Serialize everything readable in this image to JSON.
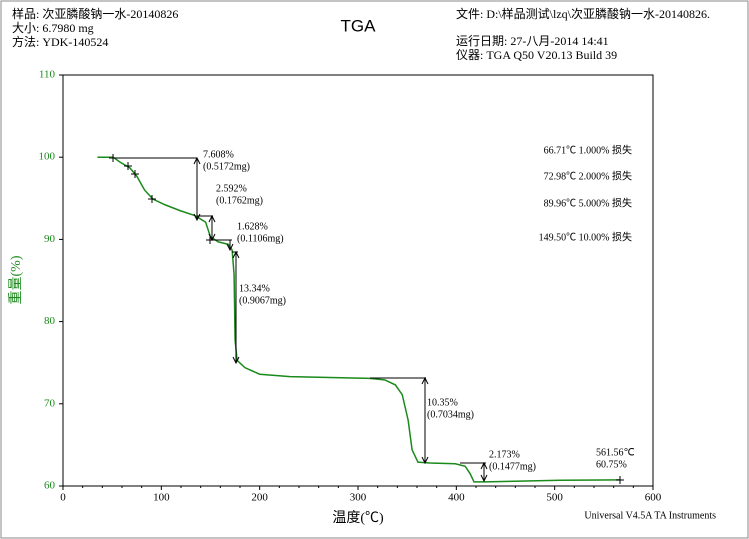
{
  "header": {
    "sample": "样品: 次亚膦酸钠一水-20140826",
    "size": "大小: 6.7980 mg",
    "method": "方法: YDK-140524",
    "file": "文件: D:\\样品测试\\lzq\\次亚膦酸钠一水-20140826.",
    "run_date": "运行日期: 27-八月-2014 14:41",
    "instrument": "仪器: TGA Q50 V20.13 Build 39"
  },
  "footer": "Universal V4.5A TA Instruments",
  "chart_data": {
    "type": "line",
    "title": "TGA",
    "xlabel": "温度(℃)",
    "ylabel": "重量(%)",
    "color": "#1a8a1a",
    "x": [
      35,
      51,
      58,
      68,
      75,
      83,
      91.5,
      104,
      119,
      134,
      145,
      150,
      158,
      168,
      172,
      174,
      175,
      177,
      185,
      200,
      231,
      312,
      327.5,
      338,
      345,
      351,
      355,
      361,
      373,
      399,
      409,
      414,
      418,
      429,
      465,
      506,
      566.5
    ],
    "values": [
      100.0,
      100.0,
      99.4,
      98.7,
      97.7,
      96.0,
      94.9,
      94.2,
      93.5,
      92.9,
      92.1,
      90.3,
      89.7,
      89.4,
      88.7,
      85.7,
      77.8,
      75.3,
      74.4,
      73.6,
      73.3,
      73.1,
      72.9,
      72.3,
      71.1,
      68.0,
      64.4,
      62.9,
      62.8,
      62.7,
      62.4,
      61.5,
      60.5,
      60.5,
      60.6,
      60.7,
      60.75
    ],
    "xlim": [
      0,
      600
    ],
    "xticks": [
      0,
      100,
      200,
      300,
      400,
      500,
      600
    ],
    "ylim": [
      60,
      110
    ],
    "yticks": [
      60,
      70,
      80,
      90,
      100,
      110
    ],
    "annotations": [
      [
        "7.608%",
        "(0.5172mg)"
      ],
      [
        "2.592%",
        "(0.1762mg)"
      ],
      [
        "1.628%",
        "(0.1106mg)"
      ],
      [
        "13.34%",
        "(0.9067mg)"
      ],
      [
        "10.35%",
        "(0.7034mg)"
      ],
      [
        "2.173%",
        "(0.1477mg)"
      ],
      [
        "561.56℃",
        "60.75%"
      ]
    ],
    "loss_labels": [
      "66.71℃ 1.000% 损失",
      "72.98℃ 2.000% 损失",
      "89.96℃ 5.000% 损失",
      "149.50℃ 10.00% 损失"
    ]
  }
}
